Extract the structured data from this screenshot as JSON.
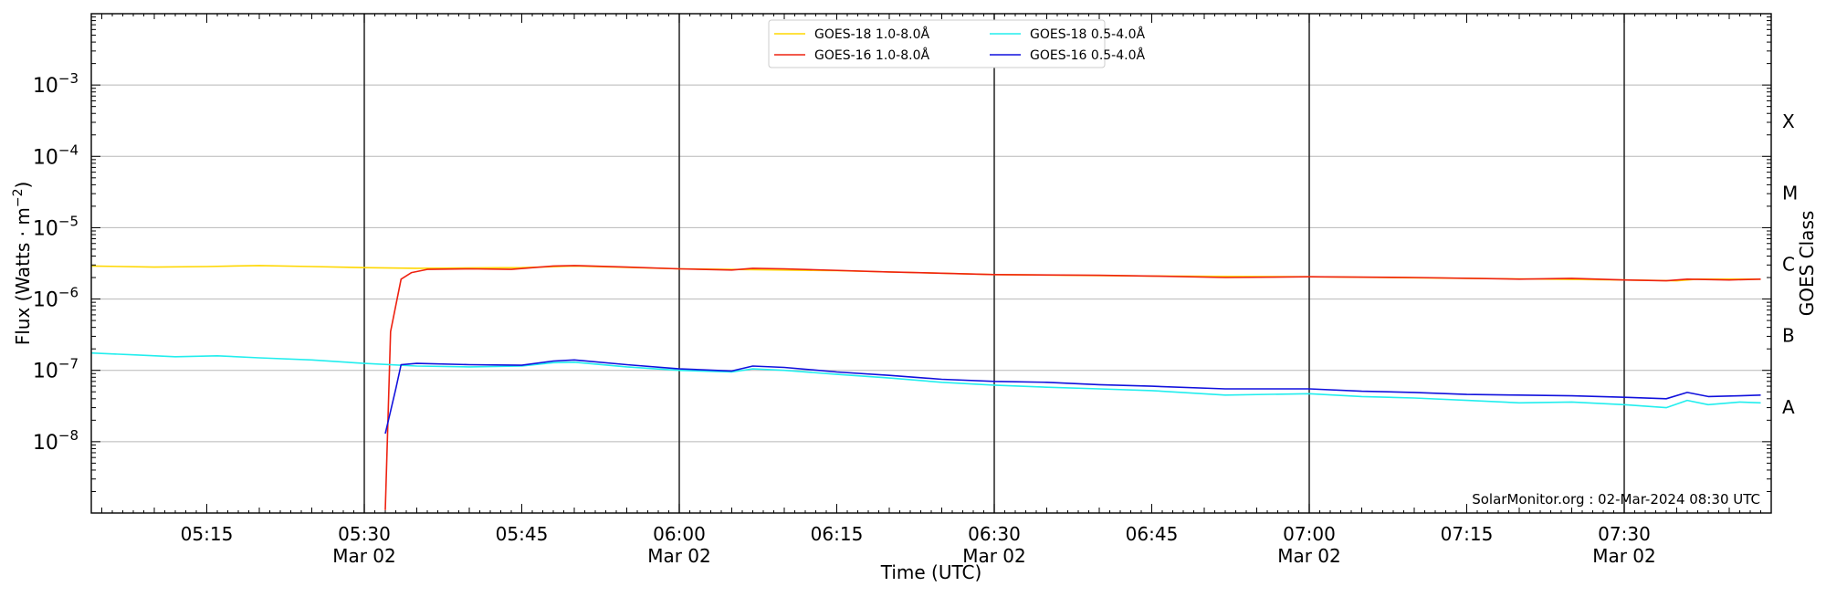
{
  "chart_data": {
    "type": "line",
    "title": "",
    "xlabel": "Time (UTC)",
    "ylabel": "Flux (Watts · m^-2)",
    "ylabel_main": "Flux (Watts · m",
    "ylabel_exp": "−2",
    "ylabel_close": ")",
    "y2label": "GOES Class",
    "yscale": "log",
    "xlim": [
      "05:04",
      "07:44"
    ],
    "ylim": [
      1e-09,
      0.01
    ],
    "grid": {
      "y_major": true,
      "x_vertical_lines": [
        "05:30",
        "06:00",
        "06:30",
        "07:00",
        "07:30"
      ]
    },
    "legend": {
      "placement": "top-center"
    },
    "x_ticks": [
      {
        "t": "05:15",
        "label": "05:15",
        "sub": ""
      },
      {
        "t": "05:30",
        "label": "05:30",
        "sub": "Mar 02"
      },
      {
        "t": "05:45",
        "label": "05:45",
        "sub": ""
      },
      {
        "t": "06:00",
        "label": "06:00",
        "sub": "Mar 02"
      },
      {
        "t": "06:15",
        "label": "06:15",
        "sub": ""
      },
      {
        "t": "06:30",
        "label": "06:30",
        "sub": "Mar 02"
      },
      {
        "t": "06:45",
        "label": "06:45",
        "sub": ""
      },
      {
        "t": "07:00",
        "label": "07:00",
        "sub": "Mar 02"
      },
      {
        "t": "07:15",
        "label": "07:15",
        "sub": ""
      },
      {
        "t": "07:30",
        "label": "07:30",
        "sub": "Mar 02"
      }
    ],
    "y_ticks": [
      {
        "v": 1e-08,
        "base": "10",
        "exp": "−8"
      },
      {
        "v": 1e-07,
        "base": "10",
        "exp": "−7"
      },
      {
        "v": 1e-06,
        "base": "10",
        "exp": "−6"
      },
      {
        "v": 1e-05,
        "base": "10",
        "exp": "−5"
      },
      {
        "v": 0.0001,
        "base": "10",
        "exp": "−4"
      },
      {
        "v": 0.001,
        "base": "10",
        "exp": "−3"
      }
    ],
    "goes_classes": [
      {
        "label": "A",
        "v": 3.16e-08
      },
      {
        "label": "B",
        "v": 3.16e-07
      },
      {
        "label": "C",
        "v": 3.16e-06
      },
      {
        "label": "M",
        "v": 3.16e-05
      },
      {
        "label": "X",
        "v": 0.000316
      }
    ],
    "annotation": "SolarMonitor.org : 02-Mar-2024 08:30 UTC",
    "series": [
      {
        "name": "GOES-18 1.0-8.0Å",
        "color": "#ffd700",
        "points": [
          [
            "05:04",
            2.9e-06
          ],
          [
            "05:10",
            2.8e-06
          ],
          [
            "05:15",
            2.85e-06
          ],
          [
            "05:20",
            2.95e-06
          ],
          [
            "05:25",
            2.85e-06
          ],
          [
            "05:30",
            2.75e-06
          ],
          [
            "05:35",
            2.7e-06
          ],
          [
            "05:45",
            2.75e-06
          ],
          [
            "05:50",
            2.9e-06
          ],
          [
            "06:00",
            2.65e-06
          ],
          [
            "06:15",
            2.5e-06
          ],
          [
            "06:30",
            2.2e-06
          ],
          [
            "06:45",
            2.1e-06
          ],
          [
            "07:00",
            2.05e-06
          ],
          [
            "07:15",
            1.95e-06
          ],
          [
            "07:30",
            1.85e-06
          ],
          [
            "07:35",
            1.8e-06
          ],
          [
            "07:37",
            1.9e-06
          ],
          [
            "07:43",
            1.9e-06
          ]
        ]
      },
      {
        "name": "GOES-16 1.0-8.0Å",
        "color": "#ee2211",
        "points": [
          [
            "05:32",
            1.1e-09
          ],
          [
            "05:32.5",
            3.5e-07
          ],
          [
            "05:33.5",
            1.9e-06
          ],
          [
            "05:34.5",
            2.35e-06
          ],
          [
            "05:36",
            2.6e-06
          ],
          [
            "05:40",
            2.65e-06
          ],
          [
            "05:44",
            2.6e-06
          ],
          [
            "05:48",
            2.9e-06
          ],
          [
            "05:50",
            2.95e-06
          ],
          [
            "05:55",
            2.8e-06
          ],
          [
            "06:00",
            2.65e-06
          ],
          [
            "06:05",
            2.55e-06
          ],
          [
            "06:07",
            2.7e-06
          ],
          [
            "06:10",
            2.65e-06
          ],
          [
            "06:20",
            2.4e-06
          ],
          [
            "06:30",
            2.2e-06
          ],
          [
            "06:40",
            2.15e-06
          ],
          [
            "06:45",
            2.1e-06
          ],
          [
            "06:52",
            2e-06
          ],
          [
            "07:00",
            2.05e-06
          ],
          [
            "07:10",
            2e-06
          ],
          [
            "07:20",
            1.9e-06
          ],
          [
            "07:25",
            1.95e-06
          ],
          [
            "07:30",
            1.85e-06
          ],
          [
            "07:34",
            1.8e-06
          ],
          [
            "07:36",
            1.9e-06
          ],
          [
            "07:40",
            1.85e-06
          ],
          [
            "07:43",
            1.9e-06
          ]
        ]
      },
      {
        "name": "GOES-18 0.5-4.0Å",
        "color": "#22eeee",
        "points": [
          [
            "05:04",
            1.75e-07
          ],
          [
            "05:08",
            1.65e-07
          ],
          [
            "05:12",
            1.55e-07
          ],
          [
            "05:16",
            1.6e-07
          ],
          [
            "05:20",
            1.5e-07
          ],
          [
            "05:25",
            1.4e-07
          ],
          [
            "05:30",
            1.25e-07
          ],
          [
            "05:35",
            1.15e-07
          ],
          [
            "05:40",
            1.12e-07
          ],
          [
            "05:45",
            1.15e-07
          ],
          [
            "05:48",
            1.28e-07
          ],
          [
            "05:50",
            1.3e-07
          ],
          [
            "05:55",
            1.12e-07
          ],
          [
            "06:00",
            1e-07
          ],
          [
            "06:05",
            9.5e-08
          ],
          [
            "06:07",
            1.05e-07
          ],
          [
            "06:10",
            1e-07
          ],
          [
            "06:15",
            8.8e-08
          ],
          [
            "06:20",
            7.8e-08
          ],
          [
            "06:25",
            6.8e-08
          ],
          [
            "06:30",
            6.2e-08
          ],
          [
            "06:35",
            5.8e-08
          ],
          [
            "06:40",
            5.5e-08
          ],
          [
            "06:45",
            5.2e-08
          ],
          [
            "06:52",
            4.5e-08
          ],
          [
            "07:00",
            4.7e-08
          ],
          [
            "07:05",
            4.3e-08
          ],
          [
            "07:10",
            4.1e-08
          ],
          [
            "07:15",
            3.8e-08
          ],
          [
            "07:20",
            3.5e-08
          ],
          [
            "07:25",
            3.6e-08
          ],
          [
            "07:30",
            3.3e-08
          ],
          [
            "07:34",
            3e-08
          ],
          [
            "07:36",
            3.8e-08
          ],
          [
            "07:38",
            3.3e-08
          ],
          [
            "07:41",
            3.6e-08
          ],
          [
            "07:43",
            3.5e-08
          ]
        ]
      },
      {
        "name": "GOES-16 0.5-4.0Å",
        "color": "#1111dd",
        "points": [
          [
            "05:32",
            1.3e-08
          ],
          [
            "05:33",
            5.5e-08
          ],
          [
            "05:33.5",
            1.2e-07
          ],
          [
            "05:35",
            1.25e-07
          ],
          [
            "05:40",
            1.2e-07
          ],
          [
            "05:45",
            1.18e-07
          ],
          [
            "05:48",
            1.35e-07
          ],
          [
            "05:50",
            1.4e-07
          ],
          [
            "05:55",
            1.2e-07
          ],
          [
            "06:00",
            1.05e-07
          ],
          [
            "06:05",
            9.8e-08
          ],
          [
            "06:07",
            1.15e-07
          ],
          [
            "06:10",
            1.1e-07
          ],
          [
            "06:15",
            9.5e-08
          ],
          [
            "06:20",
            8.5e-08
          ],
          [
            "06:25",
            7.5e-08
          ],
          [
            "06:30",
            7e-08
          ],
          [
            "06:35",
            6.8e-08
          ],
          [
            "06:40",
            6.3e-08
          ],
          [
            "06:45",
            6e-08
          ],
          [
            "06:52",
            5.5e-08
          ],
          [
            "07:00",
            5.5e-08
          ],
          [
            "07:05",
            5.1e-08
          ],
          [
            "07:10",
            4.9e-08
          ],
          [
            "07:15",
            4.6e-08
          ],
          [
            "07:20",
            4.5e-08
          ],
          [
            "07:25",
            4.4e-08
          ],
          [
            "07:30",
            4.2e-08
          ],
          [
            "07:34",
            4e-08
          ],
          [
            "07:36",
            4.9e-08
          ],
          [
            "07:38",
            4.3e-08
          ],
          [
            "07:41",
            4.4e-08
          ],
          [
            "07:43",
            4.5e-08
          ]
        ]
      }
    ]
  }
}
